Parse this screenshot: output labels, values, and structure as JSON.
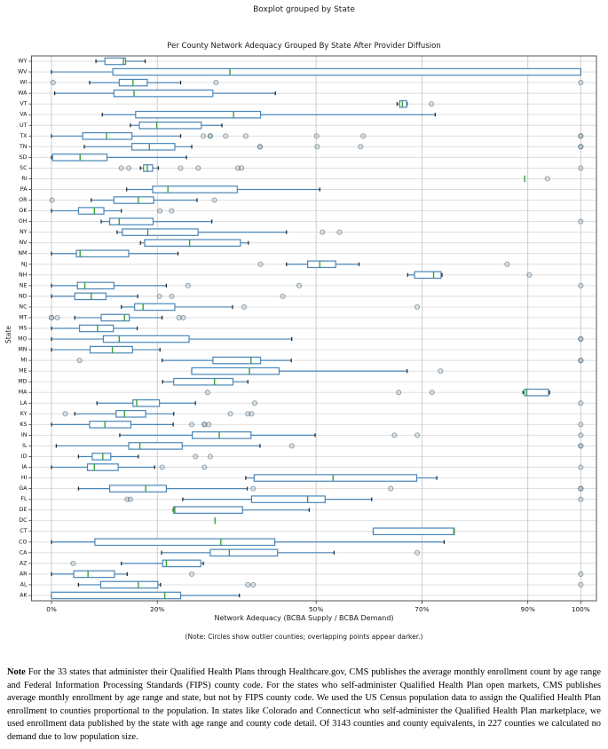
{
  "header": {
    "suptitle": "Boxplot grouped by State"
  },
  "colors": {
    "box": "#4a86b8",
    "median": "#36a336",
    "cap": "#2b2b2b",
    "grid_h": "#dcdcdc",
    "grid_v": "#c9c9c9",
    "spine": "#555555",
    "outlier_fill": "rgba(150,168,180,0.28)",
    "outlier_stroke": "rgba(70,100,120,0.60)"
  },
  "chart_data": {
    "type": "boxplot",
    "orientation": "horizontal",
    "title": "Per County Network Adequacy Grouped By State After Provider Diffusion",
    "xlabel": "Network Adequacy (BCBA Supply / BCBA Demand)",
    "ylabel": "State",
    "note": "(Note: Circles show outlier counties; overlapping points appear darker.)",
    "grid": true,
    "units": "percent",
    "xlim": [
      -3.8,
      103.2
    ],
    "x_tick_values": [
      0,
      20,
      50,
      70,
      90,
      100
    ],
    "x_tick_labels": [
      "0%",
      "20%",
      "50%",
      "70%",
      "90%",
      "100%"
    ],
    "legend": "none",
    "series": [
      {
        "state": "WY",
        "whislo": 8.4,
        "q1": 10.1,
        "med": 13.6,
        "q3": 14.0,
        "whishi": 17.7,
        "outliers": []
      },
      {
        "state": "WV",
        "whislo": 0,
        "q1": 11.6,
        "med": 33.7,
        "q3": 100,
        "whishi": 100,
        "outliers": []
      },
      {
        "state": "WI",
        "whislo": 7.2,
        "q1": 12.8,
        "med": 15.4,
        "q3": 18.1,
        "whishi": 24.4,
        "outliers": [
          0.3,
          31.1,
          100
        ]
      },
      {
        "state": "WA",
        "whislo": 0.6,
        "q1": 11.8,
        "med": 15.6,
        "q3": 30.5,
        "whishi": 42.3,
        "outliers": []
      },
      {
        "state": "VT",
        "whislo": 65.3,
        "q1": 65.8,
        "med": 66.3,
        "q3": 67.1,
        "whishi": 67.2,
        "outliers": [
          71.8
        ]
      },
      {
        "state": "VA",
        "whislo": 9.6,
        "q1": 15.9,
        "med": 34.4,
        "q3": 39.5,
        "whishi": 72.5,
        "outliers": []
      },
      {
        "state": "UT",
        "whislo": 14.9,
        "q1": 16.6,
        "med": 19.9,
        "q3": 28.3,
        "whishi": 32.2,
        "outliers": []
      },
      {
        "state": "TX",
        "whislo": 0,
        "q1": 5.9,
        "med": 10.4,
        "q3": 15.2,
        "whishi": 24.4,
        "outliers": [
          28.7,
          30,
          30,
          32.9,
          36.7,
          50.1,
          58.9,
          100,
          100
        ]
      },
      {
        "state": "TN",
        "whislo": 6.2,
        "q1": 15.2,
        "med": 18.5,
        "q3": 23.3,
        "whishi": 26.5,
        "outliers": [
          39.4,
          39.4,
          50.2,
          58.4,
          100,
          100
        ]
      },
      {
        "state": "SD",
        "whislo": 0,
        "q1": 0.2,
        "med": 5.4,
        "q3": 10.5,
        "whishi": 25.5,
        "outliers": []
      },
      {
        "state": "SC",
        "whislo": 16.8,
        "q1": 17.4,
        "med": 18.1,
        "q3": 19.1,
        "whishi": 20.2,
        "outliers": [
          13.2,
          14.6,
          24.4,
          27.7,
          35.2,
          35.9,
          100
        ]
      },
      {
        "state": "RI",
        "whislo": 89.4,
        "q1": 89.4,
        "med": 89.4,
        "q3": 89.4,
        "whishi": 89.4,
        "outliers": [
          93.7
        ]
      },
      {
        "state": "PA",
        "whislo": 14.2,
        "q1": 19.1,
        "med": 22.0,
        "q3": 35.1,
        "whishi": 50.7,
        "outliers": []
      },
      {
        "state": "OR",
        "whislo": 7.5,
        "q1": 11.8,
        "med": 16.4,
        "q3": 19.3,
        "whishi": 27.5,
        "outliers": [
          0.1,
          30.8
        ]
      },
      {
        "state": "OK",
        "whislo": 0,
        "q1": 5.1,
        "med": 8.1,
        "q3": 9.9,
        "whishi": 13.2,
        "outliers": [
          20.5,
          22.7
        ]
      },
      {
        "state": "OH",
        "whislo": 9.4,
        "q1": 11.0,
        "med": 12.8,
        "q3": 19.2,
        "whishi": 30.3,
        "outliers": [
          100
        ]
      },
      {
        "state": "NY",
        "whislo": 12.4,
        "q1": 13.4,
        "med": 18.2,
        "q3": 27.7,
        "whishi": 44.4,
        "outliers": [
          51.2,
          54.4
        ]
      },
      {
        "state": "NV",
        "whislo": 16.8,
        "q1": 17.6,
        "med": 26.1,
        "q3": 35.7,
        "whishi": 37.2,
        "outliers": []
      },
      {
        "state": "NM",
        "whislo": 0,
        "q1": 4.7,
        "med": 5.4,
        "q3": 14.6,
        "whishi": 23.9,
        "outliers": []
      },
      {
        "state": "NJ",
        "whislo": 44.4,
        "q1": 48.4,
        "med": 50.7,
        "q3": 53.7,
        "whishi": 58.1,
        "outliers": [
          39.5,
          86.1
        ]
      },
      {
        "state": "NH",
        "whislo": 67.3,
        "q1": 68.6,
        "med": 72.2,
        "q3": 73.6,
        "whishi": 73.8,
        "outliers": [
          90.3
        ]
      },
      {
        "state": "NE",
        "whislo": 0,
        "q1": 4.9,
        "med": 6.3,
        "q3": 11.8,
        "whishi": 21.7,
        "outliers": [
          25.8,
          46.8,
          100
        ]
      },
      {
        "state": "ND",
        "whislo": 0,
        "q1": 4.4,
        "med": 7.5,
        "q3": 10.3,
        "whishi": 16.3,
        "outliers": [
          20.4,
          22.7,
          43.7
        ]
      },
      {
        "state": "NC",
        "whislo": 13.2,
        "q1": 15.7,
        "med": 17.3,
        "q3": 23.3,
        "whishi": 34.2,
        "outliers": [
          36.4,
          69.1
        ]
      },
      {
        "state": "MT",
        "whislo": 4.4,
        "q1": 9.4,
        "med": 13.8,
        "q3": 14.7,
        "whishi": 20.9,
        "outliers": [
          0,
          0,
          1.1,
          24.1,
          24.9
        ]
      },
      {
        "state": "MS",
        "whislo": 0,
        "q1": 5.3,
        "med": 8.7,
        "q3": 11.7,
        "whishi": 16.2,
        "outliers": []
      },
      {
        "state": "MO",
        "whislo": 0,
        "q1": 9.8,
        "med": 12.8,
        "q3": 26.0,
        "whishi": 45.4,
        "outliers": [
          100,
          100
        ]
      },
      {
        "state": "MN",
        "whislo": 0,
        "q1": 7.3,
        "med": 11.5,
        "q3": 15.3,
        "whishi": 20.5,
        "outliers": []
      },
      {
        "state": "MI",
        "whislo": 20.9,
        "q1": 30.5,
        "med": 37.7,
        "q3": 39.5,
        "whishi": 45.3,
        "outliers": [
          5.3,
          100,
          100
        ]
      },
      {
        "state": "ME",
        "whislo": 26.5,
        "q1": 26.5,
        "med": 37.4,
        "q3": 43.0,
        "whishi": 67.2,
        "outliers": [
          73.5
        ]
      },
      {
        "state": "MD",
        "whislo": 21.0,
        "q1": 23.1,
        "med": 30.8,
        "q3": 34.3,
        "whishi": 37.1,
        "outliers": []
      },
      {
        "state": "MA",
        "whislo": 89.1,
        "q1": 89.4,
        "med": 89.8,
        "q3": 93.9,
        "whishi": 94.1,
        "outliers": [
          29.5,
          65.6,
          71.9
        ]
      },
      {
        "state": "LA",
        "whislo": 8.6,
        "q1": 15.4,
        "med": 16.1,
        "q3": 20.4,
        "whishi": 27.2,
        "outliers": [
          38.4,
          100
        ]
      },
      {
        "state": "KY",
        "whislo": 4.4,
        "q1": 12.2,
        "med": 13.8,
        "q3": 17.8,
        "whishi": 23.1,
        "outliers": [
          2.6,
          33.8,
          37.1,
          37.8
        ]
      },
      {
        "state": "KS",
        "whislo": 0,
        "q1": 7.2,
        "med": 10.1,
        "q3": 15.0,
        "whishi": 23.0,
        "outliers": [
          26.5,
          28.9,
          28.9,
          29.7,
          100
        ]
      },
      {
        "state": "IN",
        "whislo": 12.9,
        "q1": 26.6,
        "med": 31.7,
        "q3": 37.7,
        "whishi": 49.8,
        "outliers": [
          64.8,
          69.1,
          100
        ]
      },
      {
        "state": "IL",
        "whislo": 0.9,
        "q1": 14.6,
        "med": 16.7,
        "q3": 24.7,
        "whishi": 39.4,
        "outliers": [
          45.4,
          100,
          100
        ]
      },
      {
        "state": "ID",
        "whislo": 5.1,
        "q1": 7.7,
        "med": 9.7,
        "q3": 11.2,
        "whishi": 16.4,
        "outliers": [
          27.2,
          30.0
        ]
      },
      {
        "state": "IA",
        "whislo": 0,
        "q1": 6.8,
        "med": 8.1,
        "q3": 12.6,
        "whishi": 19.5,
        "outliers": [
          20.9,
          28.9,
          100
        ]
      },
      {
        "state": "HI",
        "whislo": 36.7,
        "q1": 38.3,
        "med": 53.2,
        "q3": 69.0,
        "whishi": 72.8,
        "outliers": []
      },
      {
        "state": "GA",
        "whislo": 5.1,
        "q1": 11.0,
        "med": 17.8,
        "q3": 21.7,
        "whishi": 37.0,
        "outliers": [
          38.1,
          64.1,
          100,
          100
        ]
      },
      {
        "state": "FL",
        "whislo": 24.8,
        "q1": 37.8,
        "med": 48.4,
        "q3": 51.7,
        "whishi": 60.5,
        "outliers": [
          14.3,
          14.9,
          100
        ]
      },
      {
        "state": "DE",
        "whislo": 23.0,
        "q1": 23.1,
        "med": 23.3,
        "q3": 36.1,
        "whishi": 48.7,
        "outliers": []
      },
      {
        "state": "DC",
        "whislo": 30.9,
        "q1": 30.9,
        "med": 30.9,
        "q3": 30.9,
        "whishi": 30.9,
        "outliers": []
      },
      {
        "state": "CT",
        "whislo": 60.8,
        "q1": 60.8,
        "med": 76.0,
        "q3": 76.1,
        "whishi": 76.1,
        "outliers": []
      },
      {
        "state": "CO",
        "whislo": 0,
        "q1": 8.2,
        "med": 32.0,
        "q3": 42.2,
        "whishi": 74.2,
        "outliers": []
      },
      {
        "state": "CA",
        "whislo": 20.8,
        "q1": 30.0,
        "med": 33.6,
        "q3": 42.7,
        "whishi": 53.4,
        "outliers": [
          69.1
        ]
      },
      {
        "state": "AZ",
        "whislo": 13.2,
        "q1": 21.0,
        "med": 21.7,
        "q3": 28.2,
        "whishi": 28.7,
        "outliers": [
          4.1
        ]
      },
      {
        "state": "AR",
        "whislo": 0,
        "q1": 4.2,
        "med": 6.9,
        "q3": 11.9,
        "whishi": 14.3,
        "outliers": [
          26.5,
          100
        ]
      },
      {
        "state": "AL",
        "whislo": 5.1,
        "q1": 9.3,
        "med": 16.4,
        "q3": 20.1,
        "whishi": 20.6,
        "outliers": [
          37.1,
          38.1,
          100
        ]
      },
      {
        "state": "AK",
        "whislo": 0,
        "q1": 0,
        "med": 21.4,
        "q3": 24.4,
        "whishi": 35.5,
        "outliers": []
      }
    ]
  },
  "footer": {
    "label": "Note",
    "text": "For the 33 states that administer their Qualified Health Plans through Healthcare.gov, CMS publishes the average monthly enrollment count by age range and Federal Information Processing Standards (FIPS) county code. For the states who self-administer Qualified Health Plan open markets, CMS publishes average monthly enrollment by age range and state, but not by FIPS county code. We used the US Census population data to assign the Qualified Health Plan enrollment to counties proportional to the population. In states like Colorado and Connecticut who self-administer the Qualified Health Plan marketplace, we used enrollment data published by the state with age range and county code detail. Of 3143 counties and county equivalents, in 227 counties we calculated no demand due to low population size."
  }
}
